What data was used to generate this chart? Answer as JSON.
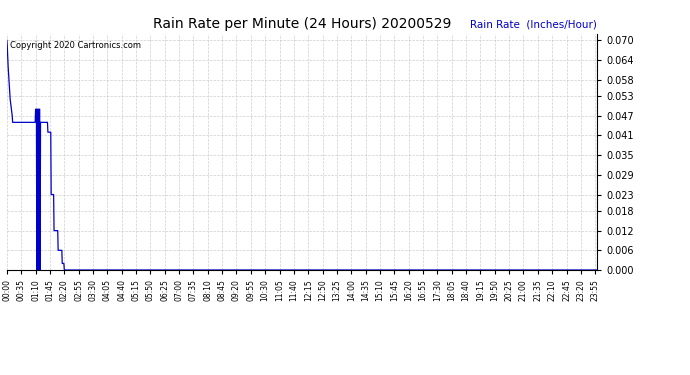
{
  "title": "Rain Rate per Minute (24 Hours) 20200529",
  "ylabel": "Rain Rate  (Inches/Hour)",
  "copyright_text": "Copyright 2020 Cartronics.com",
  "bg_color": "#ffffff",
  "line_color": "#0000cc",
  "grid_color": "#bbbbbb",
  "ylim_max": 0.072,
  "yticks": [
    0.0,
    0.006,
    0.012,
    0.018,
    0.023,
    0.029,
    0.035,
    0.041,
    0.047,
    0.053,
    0.058,
    0.064,
    0.07
  ],
  "total_minutes": 1440,
  "xtick_interval": 35
}
